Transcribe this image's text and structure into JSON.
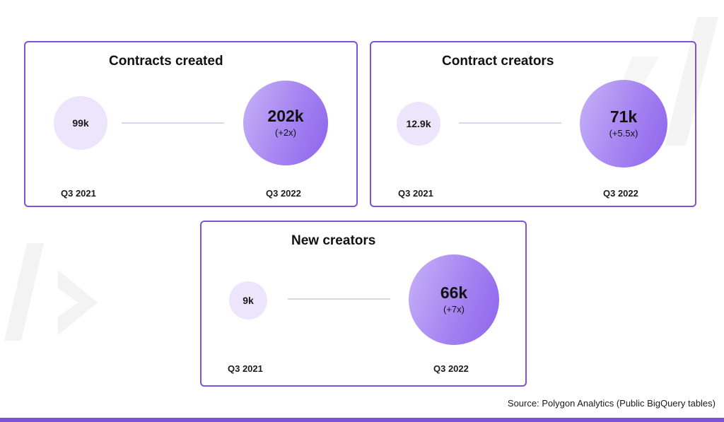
{
  "chart_data": [
    {
      "type": "bubble-comparison",
      "title": "Contracts created",
      "categories": [
        "Q3 2021",
        "Q3 2022"
      ],
      "values": [
        99000,
        202000
      ],
      "value_labels": [
        "99k",
        "202k"
      ],
      "change_label": "(+2x)"
    },
    {
      "type": "bubble-comparison",
      "title": "Contract creators",
      "categories": [
        "Q3 2021",
        "Q3 2022"
      ],
      "values": [
        12900,
        71000
      ],
      "value_labels": [
        "12.9k",
        "71k"
      ],
      "change_label": "(+5.5x)"
    },
    {
      "type": "bubble-comparison",
      "title": "New creators",
      "categories": [
        "Q3 2021",
        "Q3 2022"
      ],
      "values": [
        9000,
        66000
      ],
      "value_labels": [
        "9k",
        "66k"
      ],
      "change_label": "(+7x)"
    }
  ],
  "source": "Source: Polygon Analytics (Public BigQuery tables)",
  "colors": {
    "accent": "#7c52d6",
    "small_bubble": "#ece5fb",
    "big_bubble": "#a583f1",
    "connector": "#dcd6ec"
  }
}
